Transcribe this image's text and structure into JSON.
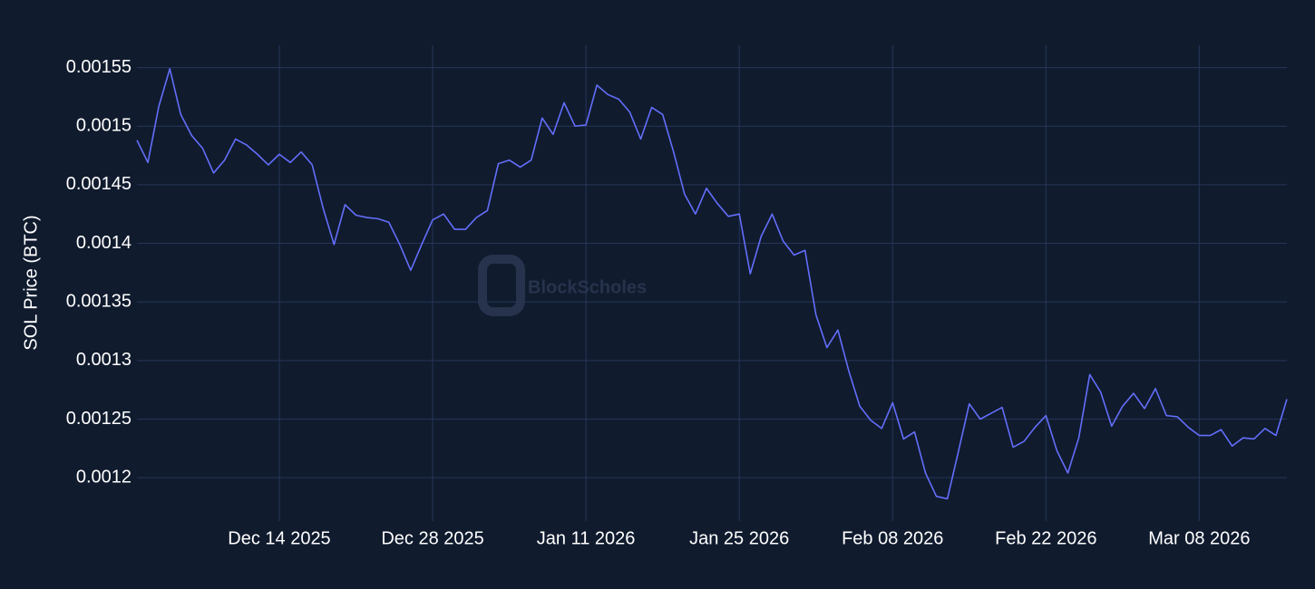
{
  "chart_data": {
    "type": "line",
    "y_label": "SOL Price (BTC)",
    "watermark": "BlockScholes",
    "color": "#636efa",
    "grid": true,
    "x": [
      "2025-12-01",
      "2025-12-02",
      "2025-12-03",
      "2025-12-04",
      "2025-12-05",
      "2025-12-06",
      "2025-12-07",
      "2025-12-08",
      "2025-12-09",
      "2025-12-10",
      "2025-12-11",
      "2025-12-12",
      "2025-12-13",
      "2025-12-14",
      "2025-12-15",
      "2025-12-16",
      "2025-12-17",
      "2025-12-18",
      "2025-12-19",
      "2025-12-20",
      "2025-12-21",
      "2025-12-22",
      "2025-12-23",
      "2025-12-24",
      "2025-12-25",
      "2025-12-26",
      "2025-12-27",
      "2025-12-28",
      "2025-12-29",
      "2025-12-30",
      "2025-12-31",
      "2026-01-01",
      "2026-01-02",
      "2026-01-03",
      "2026-01-04",
      "2026-01-05",
      "2026-01-06",
      "2026-01-07",
      "2026-01-08",
      "2026-01-09",
      "2026-01-10",
      "2026-01-11",
      "2026-01-12",
      "2026-01-13",
      "2026-01-14",
      "2026-01-15",
      "2026-01-16",
      "2026-01-17",
      "2026-01-18",
      "2026-01-19",
      "2026-01-20",
      "2026-01-21",
      "2026-01-22",
      "2026-01-23",
      "2026-01-24",
      "2026-01-25",
      "2026-01-26",
      "2026-01-27",
      "2026-01-28",
      "2026-01-29",
      "2026-01-30",
      "2026-01-31",
      "2026-02-01",
      "2026-02-02",
      "2026-02-03",
      "2026-02-04",
      "2026-02-05",
      "2026-02-06",
      "2026-02-07",
      "2026-02-08",
      "2026-02-09",
      "2026-02-10",
      "2026-02-11",
      "2026-02-12",
      "2026-02-13",
      "2026-02-14",
      "2026-02-15",
      "2026-02-16",
      "2026-02-17",
      "2026-02-18",
      "2026-02-19",
      "2026-02-20",
      "2026-02-21",
      "2026-02-22",
      "2026-02-23",
      "2026-02-24",
      "2026-02-25",
      "2026-02-26",
      "2026-02-27",
      "2026-02-28",
      "2026-03-01",
      "2026-03-02",
      "2026-03-03",
      "2026-03-04",
      "2026-03-05",
      "2026-03-06",
      "2026-03-07",
      "2026-03-08",
      "2026-03-09",
      "2026-03-10",
      "2026-03-11",
      "2026-03-12",
      "2026-03-13",
      "2026-03-14",
      "2026-03-15",
      "2026-03-16"
    ],
    "values": [
      0.001488,
      0.001469,
      0.001517,
      0.001549,
      0.00151,
      0.001492,
      0.001481,
      0.00146,
      0.001471,
      0.001489,
      0.001484,
      0.001476,
      0.001467,
      0.001476,
      0.001469,
      0.001478,
      0.001467,
      0.00143,
      0.001399,
      0.001433,
      0.001424,
      0.001422,
      0.001421,
      0.001418,
      0.001399,
      0.001377,
      0.001399,
      0.00142,
      0.001425,
      0.001412,
      0.001412,
      0.001422,
      0.001428,
      0.001468,
      0.001471,
      0.001465,
      0.001471,
      0.001507,
      0.001493,
      0.00152,
      0.0015,
      0.001501,
      0.001535,
      0.001527,
      0.001523,
      0.001512,
      0.001489,
      0.001516,
      0.00151,
      0.001478,
      0.001442,
      0.001425,
      0.001447,
      0.001434,
      0.001423,
      0.001425,
      0.001374,
      0.001406,
      0.001425,
      0.001402,
      0.00139,
      0.001394,
      0.001339,
      0.001311,
      0.001326,
      0.001291,
      0.001261,
      0.001249,
      0.001242,
      0.001264,
      0.001233,
      0.001239,
      0.001204,
      0.001184,
      0.001182,
      0.001222,
      0.001263,
      0.00125,
      0.001255,
      0.00126,
      0.001226,
      0.001231,
      0.001243,
      0.001253,
      0.001223,
      0.001204,
      0.001234,
      0.001288,
      0.001273,
      0.001244,
      0.001261,
      0.001272,
      0.001259,
      0.001276,
      0.001253,
      0.001252,
      0.001243,
      0.001236,
      0.001236,
      0.001241,
      0.001227,
      0.001234,
      0.001233,
      0.001242,
      0.001236,
      0.001267
    ],
    "xlim": [
      "2025-12-01",
      "2026-03-16"
    ],
    "xticks": [
      {
        "value": "2025-12-14",
        "label": "Dec 14 2025"
      },
      {
        "value": "2025-12-28",
        "label": "Dec 28 2025"
      },
      {
        "value": "2026-01-11",
        "label": "Jan 11 2026"
      },
      {
        "value": "2026-01-25",
        "label": "Jan 25 2026"
      },
      {
        "value": "2026-02-08",
        "label": "Feb 08 2026"
      },
      {
        "value": "2026-02-22",
        "label": "Feb 22 2026"
      },
      {
        "value": "2026-03-08",
        "label": "Mar 08 2026"
      }
    ],
    "ylim": [
      0.001163,
      0.001569
    ],
    "yticks": [
      0.0012,
      0.00125,
      0.0013,
      0.00135,
      0.0014,
      0.00145,
      0.0015,
      0.00155
    ]
  }
}
